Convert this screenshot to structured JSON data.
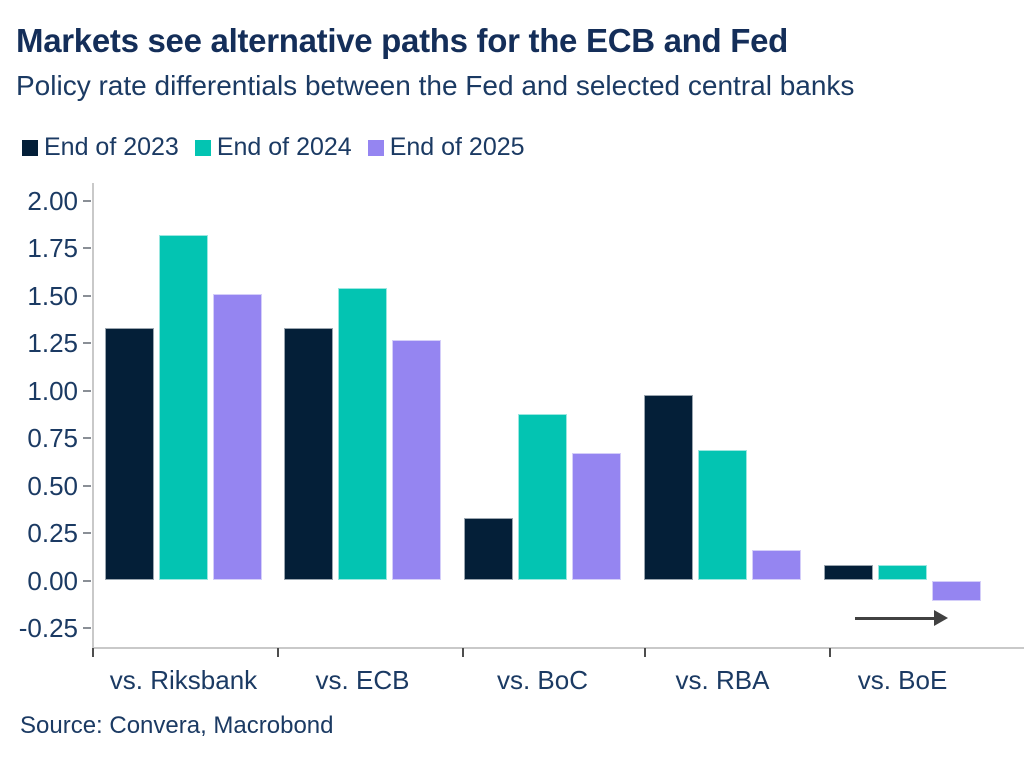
{
  "header": {
    "title": "Markets see alternative paths for the ECB and Fed",
    "subtitle": "Policy rate differentials between the Fed and selected central banks"
  },
  "colors": {
    "end_of_2023": "#041f38",
    "end_of_2024": "#03c4b2",
    "end_of_2025": "#9585f1",
    "text_navy": "#1b3a63",
    "axis_gray": "#c9c9c9",
    "arrow_gray": "#414141"
  },
  "chart_data": {
    "type": "bar",
    "categories": [
      "vs. Riksbank",
      "vs. ECB",
      "vs. BoC",
      "vs. RBA",
      "vs. BoE"
    ],
    "series": [
      {
        "name": "End of 2023",
        "color": "#041f38",
        "values": [
          1.33,
          1.33,
          0.33,
          0.98,
          0.08
        ]
      },
      {
        "name": "End of 2024",
        "color": "#03c4b2",
        "values": [
          1.82,
          1.54,
          0.88,
          0.69,
          0.08
        ]
      },
      {
        "name": "End of 2025",
        "color": "#9585f1",
        "values": [
          1.51,
          1.27,
          0.67,
          0.16,
          -0.11
        ]
      }
    ],
    "title": "Markets see alternative paths for the ECB and Fed",
    "subtitle": "Policy rate differentials between the Fed and selected central banks",
    "xlabel": "",
    "ylabel": "",
    "ylim": [
      -0.25,
      2.0
    ],
    "ytick_step": 0.25,
    "yticks": [
      "2.00",
      "1.75",
      "1.50",
      "1.25",
      "1.00",
      "0.75",
      "0.50",
      "0.25",
      "0.00",
      "-0.25"
    ],
    "grid": false,
    "legend_position": "top",
    "annotations": [
      {
        "type": "arrow",
        "direction": "right",
        "location": "below vs. BoE bars"
      }
    ]
  },
  "source": "Source: Convera, Macrobond"
}
